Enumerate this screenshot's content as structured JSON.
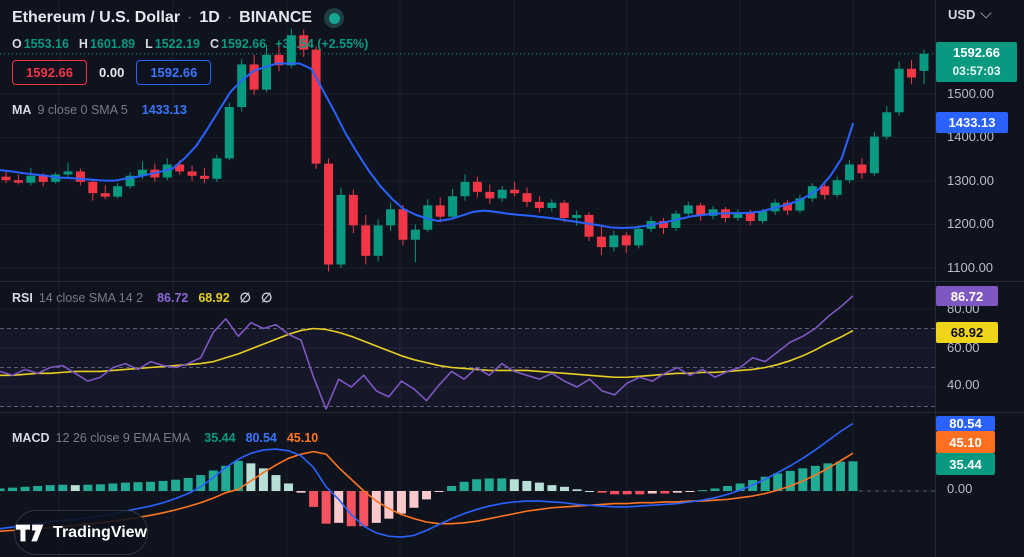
{
  "header": {
    "symbol": "Ethereum / U.S. Dollar",
    "sep": "·",
    "interval": "1D",
    "exchange": "BINANCE",
    "market_status_icon": "market-open-dot",
    "ohlc": {
      "o_label": "O",
      "o_value": "1553.16",
      "h_label": "H",
      "h_value": "1601.89",
      "l_label": "L",
      "l_value": "1522.19",
      "c_label": "C",
      "c_value": "1592.66",
      "change": "+39.54 (+2.55%)"
    },
    "bid": "1592.66",
    "spread": "0.00",
    "ask": "1592.66"
  },
  "legend": {
    "ma": {
      "name": "MA",
      "params": "9 close 0 SMA 5",
      "value": "1433.13"
    },
    "rsi": {
      "name": "RSI",
      "params": "14 close SMA 14 2",
      "value": "86.72",
      "sma_value": "68.92",
      "empty1": "∅",
      "empty2": "∅"
    },
    "macd": {
      "name": "MACD",
      "params": "12 26 close 9 EMA EMA",
      "hist_value": "35.44",
      "macd_value": "80.54",
      "signal_value": "45.10"
    }
  },
  "axis": {
    "currency": "USD",
    "chevron_icon": "chevron-down",
    "price_ticks": [
      {
        "label": "1500.00",
        "y": 94
      },
      {
        "label": "1400.00",
        "y": 137
      },
      {
        "label": "1300.00",
        "y": 181
      },
      {
        "label": "1200.00",
        "y": 224
      },
      {
        "label": "1100.00",
        "y": 268
      }
    ],
    "rsi_ticks": [
      {
        "label": "80.00",
        "y": 309
      },
      {
        "label": "60.00",
        "y": 348
      },
      {
        "label": "40.00",
        "y": 385
      }
    ],
    "macd_ticks": [
      {
        "label": "0.00",
        "y": 489
      }
    ],
    "badges": {
      "last_price": "1592.66",
      "countdown": "03:57:03",
      "ma": "1433.13",
      "rsi": "86.72",
      "rsi_sma": "68.92",
      "macd": "80.54",
      "signal": "45.10",
      "hist": "35.44"
    }
  },
  "logo": {
    "text": "TradingView",
    "icon": "tradingview-logo"
  },
  "colors": {
    "background": "#0e131e",
    "up": "#089981",
    "down": "#f23645",
    "ma_line": "#2962ff",
    "rsi_line": "#7e57c2",
    "rsi_sma_line": "#e7d021",
    "macd_line": "#2962ff",
    "signal_line": "#ff7520",
    "hist_up": "#22ab94",
    "hist_up_weak": "#b7dfd6",
    "hist_down": "#f7525f",
    "hist_down_weak": "#fbc9cc",
    "grid": "rgba(255,255,255,0.05)",
    "separator": "#242938",
    "dashed_level": "#5b616e",
    "rsi_band": "rgba(126,87,194,0.08)",
    "last_price_line": "#089981"
  },
  "chart_data": [
    {
      "type": "candlestick",
      "title": "Ethereum / U.S. Dollar 1D BINANCE",
      "ylabel": "USD",
      "ylim": [
        1080,
        1660
      ],
      "y_gridlines": [
        1500,
        1400,
        1300,
        1200,
        1100
      ],
      "last_price": 1592.66,
      "candles": [
        [
          1310,
          1322,
          1295,
          1302
        ],
        [
          1302,
          1315,
          1292,
          1296
        ],
        [
          1296,
          1330,
          1290,
          1312
        ],
        [
          1312,
          1318,
          1288,
          1298
        ],
        [
          1298,
          1320,
          1294,
          1315
        ],
        [
          1315,
          1342,
          1308,
          1322
        ],
        [
          1322,
          1328,
          1290,
          1298
        ],
        [
          1298,
          1305,
          1255,
          1272
        ],
        [
          1272,
          1290,
          1258,
          1264
        ],
        [
          1264,
          1295,
          1260,
          1288
        ],
        [
          1288,
          1320,
          1282,
          1312
        ],
        [
          1312,
          1345,
          1305,
          1326
        ],
        [
          1326,
          1340,
          1298,
          1308
        ],
        [
          1308,
          1352,
          1302,
          1338
        ],
        [
          1338,
          1348,
          1315,
          1322
        ],
        [
          1322,
          1335,
          1300,
          1312
        ],
        [
          1312,
          1330,
          1295,
          1305
        ],
        [
          1305,
          1360,
          1298,
          1352
        ],
        [
          1352,
          1480,
          1348,
          1470
        ],
        [
          1470,
          1580,
          1460,
          1568
        ],
        [
          1568,
          1590,
          1498,
          1510
        ],
        [
          1510,
          1612,
          1505,
          1590
        ],
        [
          1590,
          1622,
          1552,
          1566
        ],
        [
          1566,
          1650,
          1560,
          1635
        ],
        [
          1635,
          1648,
          1585,
          1602
        ],
        [
          1602,
          1610,
          1328,
          1340
        ],
        [
          1340,
          1352,
          1092,
          1108
        ],
        [
          1108,
          1285,
          1100,
          1268
        ],
        [
          1268,
          1280,
          1180,
          1198
        ],
        [
          1198,
          1222,
          1108,
          1128
        ],
        [
          1128,
          1212,
          1115,
          1198
        ],
        [
          1198,
          1250,
          1185,
          1235
        ],
        [
          1235,
          1245,
          1152,
          1165
        ],
        [
          1165,
          1200,
          1113,
          1188
        ],
        [
          1188,
          1258,
          1182,
          1244
        ],
        [
          1244,
          1262,
          1205,
          1218
        ],
        [
          1218,
          1282,
          1212,
          1265
        ],
        [
          1265,
          1315,
          1255,
          1298
        ],
        [
          1298,
          1310,
          1262,
          1275
        ],
        [
          1275,
          1292,
          1248,
          1260
        ],
        [
          1260,
          1288,
          1252,
          1280
        ],
        [
          1280,
          1298,
          1265,
          1272
        ],
        [
          1272,
          1285,
          1240,
          1252
        ],
        [
          1252,
          1265,
          1228,
          1238
        ],
        [
          1238,
          1258,
          1230,
          1250
        ],
        [
          1250,
          1256,
          1205,
          1215
        ],
        [
          1215,
          1232,
          1198,
          1222
        ],
        [
          1222,
          1228,
          1162,
          1172
        ],
        [
          1172,
          1198,
          1130,
          1148
        ],
        [
          1148,
          1185,
          1138,
          1175
        ],
        [
          1175,
          1182,
          1135,
          1152
        ],
        [
          1152,
          1198,
          1145,
          1190
        ],
        [
          1190,
          1218,
          1182,
          1208
        ],
        [
          1208,
          1215,
          1178,
          1192
        ],
        [
          1192,
          1232,
          1185,
          1225
        ],
        [
          1225,
          1252,
          1218,
          1244
        ],
        [
          1244,
          1250,
          1208,
          1220
        ],
        [
          1220,
          1242,
          1212,
          1235
        ],
        [
          1235,
          1240,
          1205,
          1215
        ],
        [
          1215,
          1235,
          1208,
          1228
        ],
        [
          1228,
          1234,
          1198,
          1208
        ],
        [
          1208,
          1235,
          1202,
          1230
        ],
        [
          1230,
          1258,
          1222,
          1250
        ],
        [
          1250,
          1256,
          1222,
          1232
        ],
        [
          1232,
          1268,
          1226,
          1260
        ],
        [
          1260,
          1295,
          1252,
          1288
        ],
        [
          1288,
          1296,
          1258,
          1268
        ],
        [
          1268,
          1310,
          1262,
          1302
        ],
        [
          1302,
          1348,
          1295,
          1338
        ],
        [
          1338,
          1352,
          1305,
          1318
        ],
        [
          1318,
          1412,
          1312,
          1402
        ],
        [
          1402,
          1472,
          1395,
          1458
        ],
        [
          1458,
          1575,
          1450,
          1558
        ],
        [
          1558,
          1578,
          1522,
          1538
        ],
        [
          1553.16,
          1601.89,
          1522.19,
          1592.66
        ]
      ],
      "overlays": [
        {
          "name": "MA 9 close",
          "color": "#2962ff",
          "values": [
            1325,
            1322,
            1318,
            1315,
            1312,
            1308,
            1307,
            1305,
            1303,
            1301,
            1301,
            1306,
            1310,
            1316,
            1322,
            1329,
            1352,
            1380,
            1420,
            1463,
            1505,
            1532,
            1553,
            1562,
            1570,
            1570,
            1570,
            1558,
            1509,
            1460,
            1408,
            1364,
            1323,
            1288,
            1259,
            1236,
            1223,
            1214,
            1208,
            1212,
            1220,
            1229,
            1232,
            1229,
            1225,
            1222,
            1220,
            1217,
            1214,
            1210,
            1206,
            1202,
            1198,
            1193,
            1192,
            1193,
            1197,
            1202,
            1207,
            1213,
            1219,
            1222,
            1225,
            1226,
            1226,
            1227,
            1230,
            1237,
            1244,
            1252,
            1265,
            1281,
            1311,
            1352,
            1433.13
          ]
        }
      ]
    },
    {
      "type": "line",
      "title": "RSI 14 close SMA 14 2",
      "ylim": [
        18,
        95
      ],
      "levels": [
        70,
        50,
        30
      ],
      "legend_position": "top-left",
      "series": [
        {
          "name": "RSI 14",
          "color": "#7e57c2",
          "values": [
            48,
            46,
            49,
            47,
            50,
            51,
            47,
            43,
            45,
            50,
            52,
            49,
            53,
            51,
            50,
            52,
            55,
            68,
            75,
            66,
            73,
            70,
            72,
            67,
            64,
            45,
            27,
            44,
            40,
            46,
            38,
            35,
            43,
            39,
            33,
            41,
            48,
            44,
            50,
            46,
            52,
            48,
            46,
            44,
            47,
            43,
            40,
            44,
            38,
            36,
            42,
            45,
            43,
            47,
            50,
            46,
            49,
            45,
            48,
            50,
            55,
            53,
            58,
            63,
            66,
            70,
            76,
            81,
            86.72
          ]
        },
        {
          "name": "SMA 14",
          "color": "#e7d021",
          "values": [
            46,
            46,
            46.5,
            47,
            47,
            47.5,
            48,
            48,
            48,
            48.5,
            49,
            49.5,
            50,
            50.5,
            51,
            51.5,
            52,
            53,
            55,
            57,
            59.5,
            62,
            64.5,
            67,
            69,
            70,
            69.5,
            68,
            66,
            63.5,
            61,
            58.5,
            56,
            54,
            52.5,
            51,
            50,
            49.5,
            49,
            48.5,
            48.5,
            48.5,
            48.5,
            48,
            47.5,
            47,
            46.5,
            46,
            45.5,
            45,
            45,
            45.5,
            46,
            46.5,
            47,
            47,
            47.5,
            47.5,
            48,
            48.5,
            49,
            50,
            51.5,
            53.5,
            56,
            59,
            62.5,
            65.5,
            68.92
          ]
        }
      ]
    },
    {
      "type": "macd",
      "title": "MACD 12 26 close 9 EMA EMA",
      "ylim": [
        -79,
        86
      ],
      "zero_line": 0,
      "histogram": "macd_minus_signal",
      "series": [
        {
          "name": "MACD",
          "color": "#2962ff",
          "values": [
            -45,
            -43,
            -41,
            -39,
            -37,
            -35,
            -34,
            -32,
            -30,
            -27,
            -24,
            -21,
            -18,
            -14,
            -9,
            -3,
            5,
            16,
            28,
            38,
            45,
            49,
            50,
            48,
            42,
            28,
            5,
            -10,
            -28,
            -42,
            -50,
            -54,
            -55,
            -53,
            -47,
            -40,
            -33,
            -27,
            -22,
            -18,
            -15,
            -13,
            -12,
            -12,
            -13,
            -14,
            -16,
            -17,
            -18,
            -19,
            -19,
            -18,
            -17,
            -16,
            -15,
            -13,
            -11,
            -8,
            -4,
            1,
            7,
            14,
            22,
            30,
            39,
            49,
            60,
            71,
            80.54
          ]
        },
        {
          "name": "Signal",
          "color": "#ff7520",
          "values": [
            -48,
            -47,
            -46,
            -45,
            -44,
            -42.5,
            -41,
            -39.5,
            -38,
            -36,
            -34,
            -31.5,
            -29,
            -26,
            -22.5,
            -18.5,
            -14,
            -8.5,
            -2,
            2,
            12,
            22,
            31,
            39,
            44,
            47,
            44,
            28,
            14,
            0,
            -12,
            -21,
            -28,
            -33,
            -37,
            -39,
            -39,
            -38,
            -36,
            -33,
            -30,
            -27,
            -24,
            -22,
            -20,
            -19,
            -18,
            -17,
            -16,
            -15,
            -15,
            -14,
            -14,
            -13,
            -13,
            -12,
            -12,
            -11,
            -10,
            -8,
            -6,
            -3,
            1,
            6,
            12,
            19,
            27,
            36,
            45.1
          ]
        }
      ]
    }
  ]
}
